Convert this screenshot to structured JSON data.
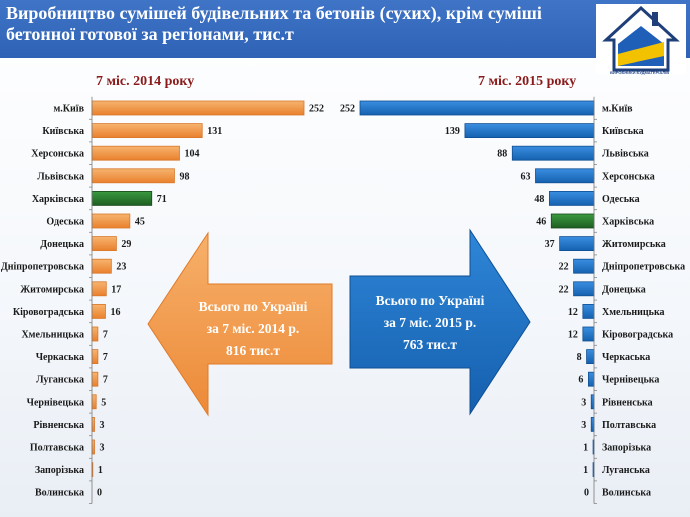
{
  "header": {
    "title": "Виробництво сумішей будівельних та бетонів (сухих), крім суміші бетонної готової за регіонами, тис.т",
    "logo_caption": "ВИРОБНИКИ БУДМАТЕРІАЛІВ",
    "logo_side": "ВСЕУКРАЇНСЬКА СПІЛКА"
  },
  "colors": {
    "orange": "#f29b4c",
    "green": "#2e7d32",
    "blue": "#1f75c8",
    "header": "#3566b8"
  },
  "chart_data": [
    {
      "type": "bar",
      "orientation": "horizontal",
      "title": "7 міс. 2014 року",
      "categories": [
        "м.Київ",
        "Київська",
        "Херсонська",
        "Львівська",
        "Харківська",
        "Одеська",
        "Донецька",
        "Дніпропетровська",
        "Житомирська",
        "Кіровоградська",
        "Хмельницька",
        "Черкаська",
        "Луганська",
        "Чернівецька",
        "Рівненська",
        "Полтавська",
        "Запорізька",
        "Волинська"
      ],
      "values": [
        252,
        131,
        104,
        98,
        71,
        45,
        29,
        23,
        17,
        16,
        7,
        7,
        7,
        5,
        3,
        3,
        1,
        0
      ],
      "highlight": "Харківська",
      "highlight_text": "Луганська",
      "total": {
        "line1": "Всього по Україні",
        "line2": "за  7 міс. 2014 р.",
        "line3": "816 тис.т"
      }
    },
    {
      "type": "bar",
      "orientation": "horizontal",
      "title": "7 міс. 2015 року",
      "categories": [
        "м.Київ",
        "Київська",
        "Львівська",
        "Херсонська",
        "Одеська",
        "Харківська",
        "Житомирська",
        "Дніпропетровська",
        "Донецька",
        "Хмельницька",
        "Кіровоградська",
        "Черкаська",
        "Чернівецька",
        "Рівненська",
        "Полтавська",
        "Запорізька",
        "Луганська",
        "Волинська"
      ],
      "values": [
        252,
        139,
        88,
        63,
        48,
        46,
        37,
        22,
        22,
        12,
        12,
        8,
        6,
        3,
        3,
        1,
        1,
        0
      ],
      "highlight": "Харківська",
      "highlight_text": "Луганська",
      "total": {
        "line1": "Всього по Україні",
        "line2": "за 7 міс. 2015 р.",
        "line3": "763 тис.т"
      }
    }
  ]
}
